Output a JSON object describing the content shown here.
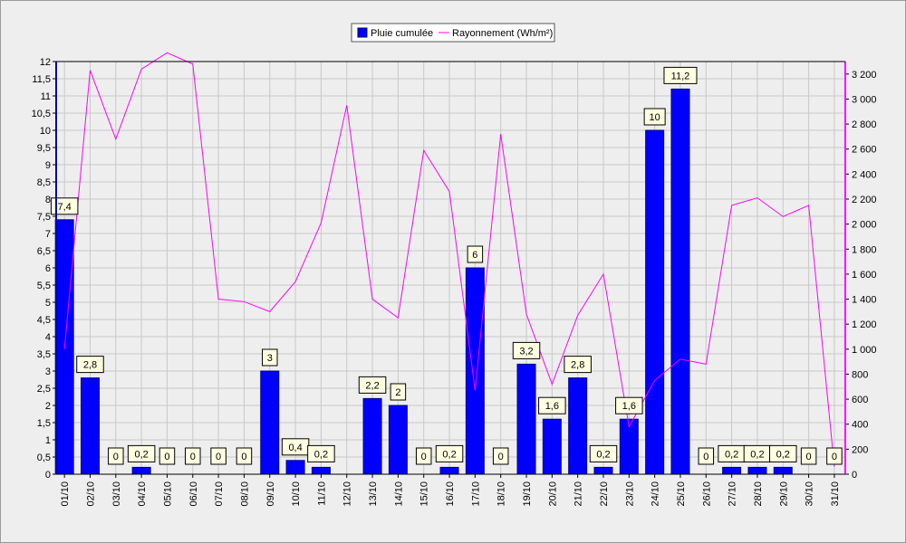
{
  "chart_data": {
    "type": "bar",
    "categories": [
      "01/10",
      "02/10",
      "03/10",
      "04/10",
      "05/10",
      "06/10",
      "07/10",
      "08/10",
      "09/10",
      "10/10",
      "11/10",
      "12/10",
      "13/10",
      "14/10",
      "15/10",
      "16/10",
      "17/10",
      "18/10",
      "19/10",
      "20/10",
      "21/10",
      "22/10",
      "23/10",
      "24/10",
      "25/10",
      "26/10",
      "27/10",
      "28/10",
      "29/10",
      "30/10",
      "31/10"
    ],
    "series": [
      {
        "name": "Pluie cumulée",
        "type": "bar",
        "axis": "left",
        "color": "#0000ff",
        "values": [
          7.4,
          2.8,
          0,
          0.2,
          0,
          0,
          0,
          0,
          3,
          0.4,
          0.2,
          0,
          2.2,
          2,
          0,
          0.2,
          6,
          0,
          3.2,
          1.6,
          2.8,
          0.2,
          1.6,
          10,
          11.2,
          0,
          0.2,
          0.2,
          0.2,
          0,
          0
        ],
        "labels": [
          "7,4",
          "2,8",
          "0",
          "0,2",
          "0",
          "0",
          "0",
          "0",
          "3",
          "0,4",
          "0,2",
          "",
          "2,2",
          "2",
          "0",
          "0,2",
          "6",
          "0",
          "3,2",
          "1,6",
          "2,8",
          "0,2",
          "1,6",
          "10",
          "11,2",
          "0",
          "0,2",
          "0,2",
          "0,2",
          "0",
          "0"
        ]
      },
      {
        "name": "Rayonnement (Wh/m²)",
        "type": "line",
        "axis": "right",
        "color": "#ff00ff",
        "values": [
          1000,
          3230,
          2680,
          3240,
          3370,
          3280,
          1400,
          1380,
          1300,
          1540,
          2010,
          2950,
          1400,
          1250,
          2590,
          2260,
          670,
          2720,
          1280,
          720,
          1270,
          1600,
          380,
          750,
          920,
          880,
          2150,
          2210,
          2060,
          2150,
          60
        ]
      }
    ],
    "y_left": {
      "min": 0,
      "max": 12,
      "step": 0.5,
      "tick_labels": [
        "0",
        "0,5",
        "1",
        "1,5",
        "2",
        "2,5",
        "3",
        "3,5",
        "4",
        "4,5",
        "5",
        "5,5",
        "6",
        "6,5",
        "7",
        "7,5",
        "8",
        "8,5",
        "9",
        "9,5",
        "10",
        "10,5",
        "11",
        "11,5",
        "12"
      ]
    },
    "y_right": {
      "min": 0,
      "max": 3300,
      "step": 200,
      "tick_labels": [
        "0",
        "200",
        "400",
        "600",
        "800",
        "1 000",
        "1 200",
        "1 400",
        "1 600",
        "1 800",
        "2 000",
        "2 200",
        "2 400",
        "2 600",
        "2 800",
        "3 000",
        "3 200"
      ]
    },
    "grid": true,
    "legend": "top-center",
    "colors": {
      "left_axis": "#0000aa",
      "right_axis": "#ff00ff",
      "grid": "#c8c8c8",
      "plot_bg": "#eeeeee",
      "label_bg": "#ffffe1"
    }
  }
}
